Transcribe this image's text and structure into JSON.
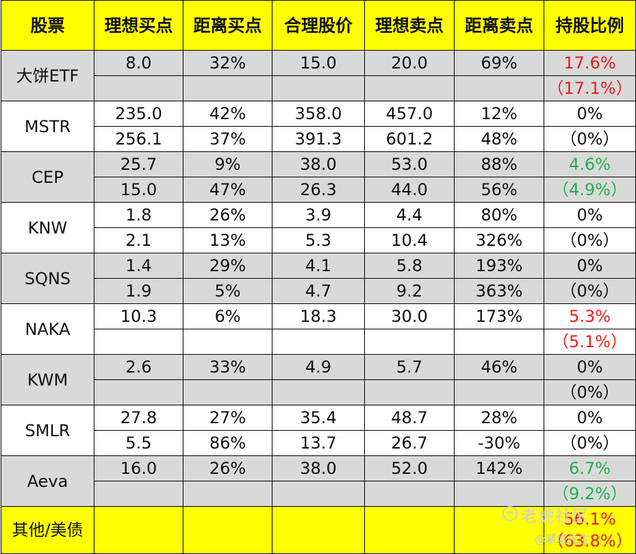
{
  "headers": [
    "股票",
    "理想买点",
    "距离买点",
    "合理股价",
    "理想卖点",
    "距离卖点",
    "持股比例"
  ],
  "rows": [
    {
      "name": "大饼ETF",
      "r1": [
        "8.0",
        "32%",
        "15.0",
        "20.0",
        "69%",
        "17.6%"
      ],
      "r2": [
        "",
        "",
        "",
        "",
        "",
        "（17.1%）"
      ],
      "holding_color": "#ee1c1c"
    },
    {
      "name": "MSTR",
      "r1": [
        "235.0",
        "42%",
        "358.0",
        "457.0",
        "12%",
        "0%"
      ],
      "r2": [
        "256.1",
        "37%",
        "391.3",
        "601.2",
        "48%",
        "（0%）"
      ],
      "holding_color": "#111111"
    },
    {
      "name": "CEP",
      "r1": [
        "25.7",
        "9%",
        "38.0",
        "53.0",
        "88%",
        "4.6%"
      ],
      "r2": [
        "15.0",
        "47%",
        "26.3",
        "44.0",
        "56%",
        "（4.9%）"
      ],
      "holding_color": "#22b14c"
    },
    {
      "name": "KNW",
      "r1": [
        "1.8",
        "26%",
        "3.9",
        "4.4",
        "80%",
        "0%"
      ],
      "r2": [
        "2.1",
        "13%",
        "5.3",
        "10.4",
        "326%",
        "（0%）"
      ],
      "holding_color": "#111111"
    },
    {
      "name": "SQNS",
      "r1": [
        "1.4",
        "29%",
        "4.1",
        "5.8",
        "193%",
        "0%"
      ],
      "r2": [
        "1.9",
        "5%",
        "4.7",
        "9.2",
        "363%",
        "（0%）"
      ],
      "holding_color": "#111111"
    },
    {
      "name": "NAKA",
      "r1": [
        "10.3",
        "6%",
        "18.3",
        "30.0",
        "173%",
        "5.3%"
      ],
      "r2": [
        "",
        "",
        "",
        "",
        "",
        "（5.1%）"
      ],
      "holding_color": "#ee1c1c"
    },
    {
      "name": "KWM",
      "r1": [
        "2.6",
        "33%",
        "4.9",
        "5.7",
        "46%",
        "0%"
      ],
      "r2": [
        "",
        "",
        "",
        "",
        "",
        "（0%）"
      ],
      "holding_color": "#111111"
    },
    {
      "name": "SMLR",
      "r1": [
        "27.8",
        "27%",
        "35.4",
        "48.7",
        "28%",
        "0%"
      ],
      "r2": [
        "5.5",
        "86%",
        "13.7",
        "26.7",
        "-30%",
        "（0%）"
      ],
      "holding_color": "#111111"
    },
    {
      "name": "Aeva",
      "r1": [
        "16.0",
        "26%",
        "38.0",
        "52.0",
        "142%",
        "6.7%"
      ],
      "r2": [
        "",
        "",
        "",
        "",
        "",
        "（9.2%）"
      ],
      "holding_color": "#22b14c"
    }
  ],
  "footer": {
    "label": "其他/美债",
    "holding": "56.1%",
    "holding_sub": "（63.8%）",
    "holding_color": "#ee1c1c"
  },
  "watermark": {
    "main": "老虎社区",
    "sub": "@慕城先生"
  }
}
